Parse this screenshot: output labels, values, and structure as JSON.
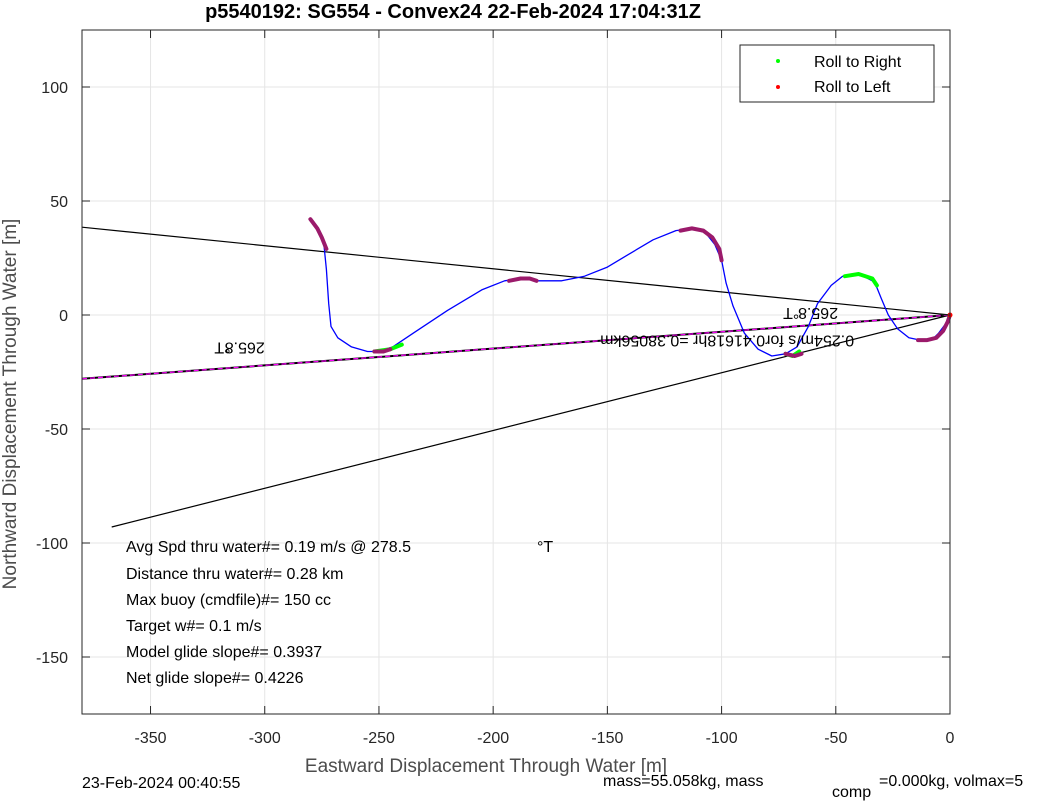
{
  "chart_data": {
    "type": "line",
    "title": "p5540192: SG554 - Convex24 22-Feb-2024 17:04:31Z",
    "xlabel": "Eastward Displacement Through Water [m]",
    "ylabel": "Northward Displacement Through Water [m]",
    "xlim": [
      -380,
      0
    ],
    "ylim": [
      -175,
      125
    ],
    "xticks": [
      -350,
      -300,
      -250,
      -200,
      -150,
      -100,
      -50,
      0
    ],
    "yticks": [
      100,
      50,
      0,
      -50,
      -100,
      -150
    ],
    "grid": true,
    "legend": {
      "placement": "top-right",
      "entries": [
        {
          "name": "Roll to Right",
          "color": "#00ff00"
        },
        {
          "name": "Roll to Left",
          "color": "#ff0000"
        }
      ]
    },
    "colors": {
      "track": "#0000ff",
      "roll_right": "#00ff00",
      "roll_left": "#ff0000",
      "marker_overlay": "#9b1a6b",
      "course_line": "#ff00ff",
      "reference_lines": "#000000"
    },
    "series": [
      {
        "name": "track",
        "x": [
          -280,
          -276,
          -274,
          -273,
          -272,
          -271,
          -268,
          -262,
          -255,
          -250,
          -244,
          -235,
          -220,
          -205,
          -195,
          -188,
          -180,
          -170,
          -160,
          -150,
          -140,
          -130,
          -120,
          -113,
          -107,
          -103,
          -100,
          -98,
          -95,
          -90,
          -84,
          -78,
          -72,
          -67,
          -62,
          -58,
          -52,
          -47,
          -43,
          -38,
          -34,
          -32,
          -30,
          -27,
          -23,
          -18,
          -13,
          -8,
          -5,
          -2,
          0
        ],
        "y": [
          42,
          36,
          30,
          20,
          5,
          -5,
          -10,
          -14,
          -16,
          -16,
          -14,
          -8,
          2,
          11,
          15,
          16,
          15,
          15,
          17,
          21,
          27,
          33,
          37,
          38,
          36,
          31,
          24,
          14,
          4,
          -8,
          -15,
          -18,
          -17,
          -14,
          -5,
          5,
          13,
          17,
          18,
          17,
          15,
          12,
          7,
          0,
          -6,
          -10,
          -11,
          -11,
          -8,
          -4,
          0
        ]
      },
      {
        "name": "roll_right_segments",
        "segments": [
          {
            "x": [
              -252,
              -245,
              -240
            ],
            "y": [
              -16,
              -15,
              -13
            ]
          },
          {
            "x": [
              -46,
              -40,
              -34,
              -32
            ],
            "y": [
              17,
              18,
              16,
              13
            ]
          },
          {
            "x": [
              -72,
              -69,
              -66
            ],
            "y": [
              -17,
              -18,
              -16
            ]
          }
        ]
      },
      {
        "name": "roll_left_segments",
        "segments": [
          {
            "x": [
              -280,
              -277,
              -275,
              -273
            ],
            "y": [
              42,
              38,
              34,
              29
            ]
          },
          {
            "x": [
              -252,
              -248,
              -245
            ],
            "y": [
              -16,
              -16,
              -15
            ]
          },
          {
            "x": [
              -193,
              -188,
              -184,
              -181
            ],
            "y": [
              15,
              16,
              16,
              15
            ]
          },
          {
            "x": [
              -118,
              -113,
              -108,
              -104,
              -101,
              -100
            ],
            "y": [
              37,
              38,
              37,
              34,
              29,
              24
            ]
          },
          {
            "x": [
              -72,
              -68,
              -65
            ],
            "y": [
              -17,
              -18,
              -17
            ]
          },
          {
            "x": [
              -14,
              -10,
              -6,
              -3,
              -1,
              0
            ],
            "y": [
              -11,
              -11,
              -10,
              -7,
              -3,
              0
            ]
          }
        ]
      },
      {
        "name": "reference_line_upper",
        "x": [
          -380,
          0
        ],
        "y": [
          38.5,
          0
        ]
      },
      {
        "name": "reference_line_lower",
        "x": [
          -367,
          0
        ],
        "y": [
          -93,
          0
        ]
      },
      {
        "name": "course_line",
        "x": [
          -380,
          0
        ],
        "y": [
          -28,
          0
        ]
      }
    ],
    "annotations": [
      {
        "text": "265.8",
        "x": -300,
        "y": -12
      },
      {
        "text": "°T",
        "x": -315,
        "y": -12
      },
      {
        "text": "265.8",
        "x": -49,
        "y": 3
      },
      {
        "text": "°T",
        "x": -66,
        "y": 3
      },
      {
        "text": "0.254m/s for0.41618hr =0.38056km",
        "x": -42,
        "y": -9
      }
    ]
  },
  "stats": [
    {
      "label": "Avg Spd thru water#=  0.19 m/s @ 278.5",
      "unit": "°T"
    },
    {
      "label": "Distance thru water#=  0.28 km"
    },
    {
      "label": "Max buoy (cmdfile)#= 150 cc"
    },
    {
      "label": "Target w#= 0.1 m/s"
    },
    {
      "label": "Model glide slope#= 0.3937"
    },
    {
      "label": "Net glide slope#= 0.4226"
    }
  ],
  "footer": {
    "left": "23-Feb-2024 00:40:55",
    "mass_text": "mass=55.058kg, mass",
    "comp_sub": "comp",
    "rest_text": "=0.000kg, volmax=5"
  }
}
